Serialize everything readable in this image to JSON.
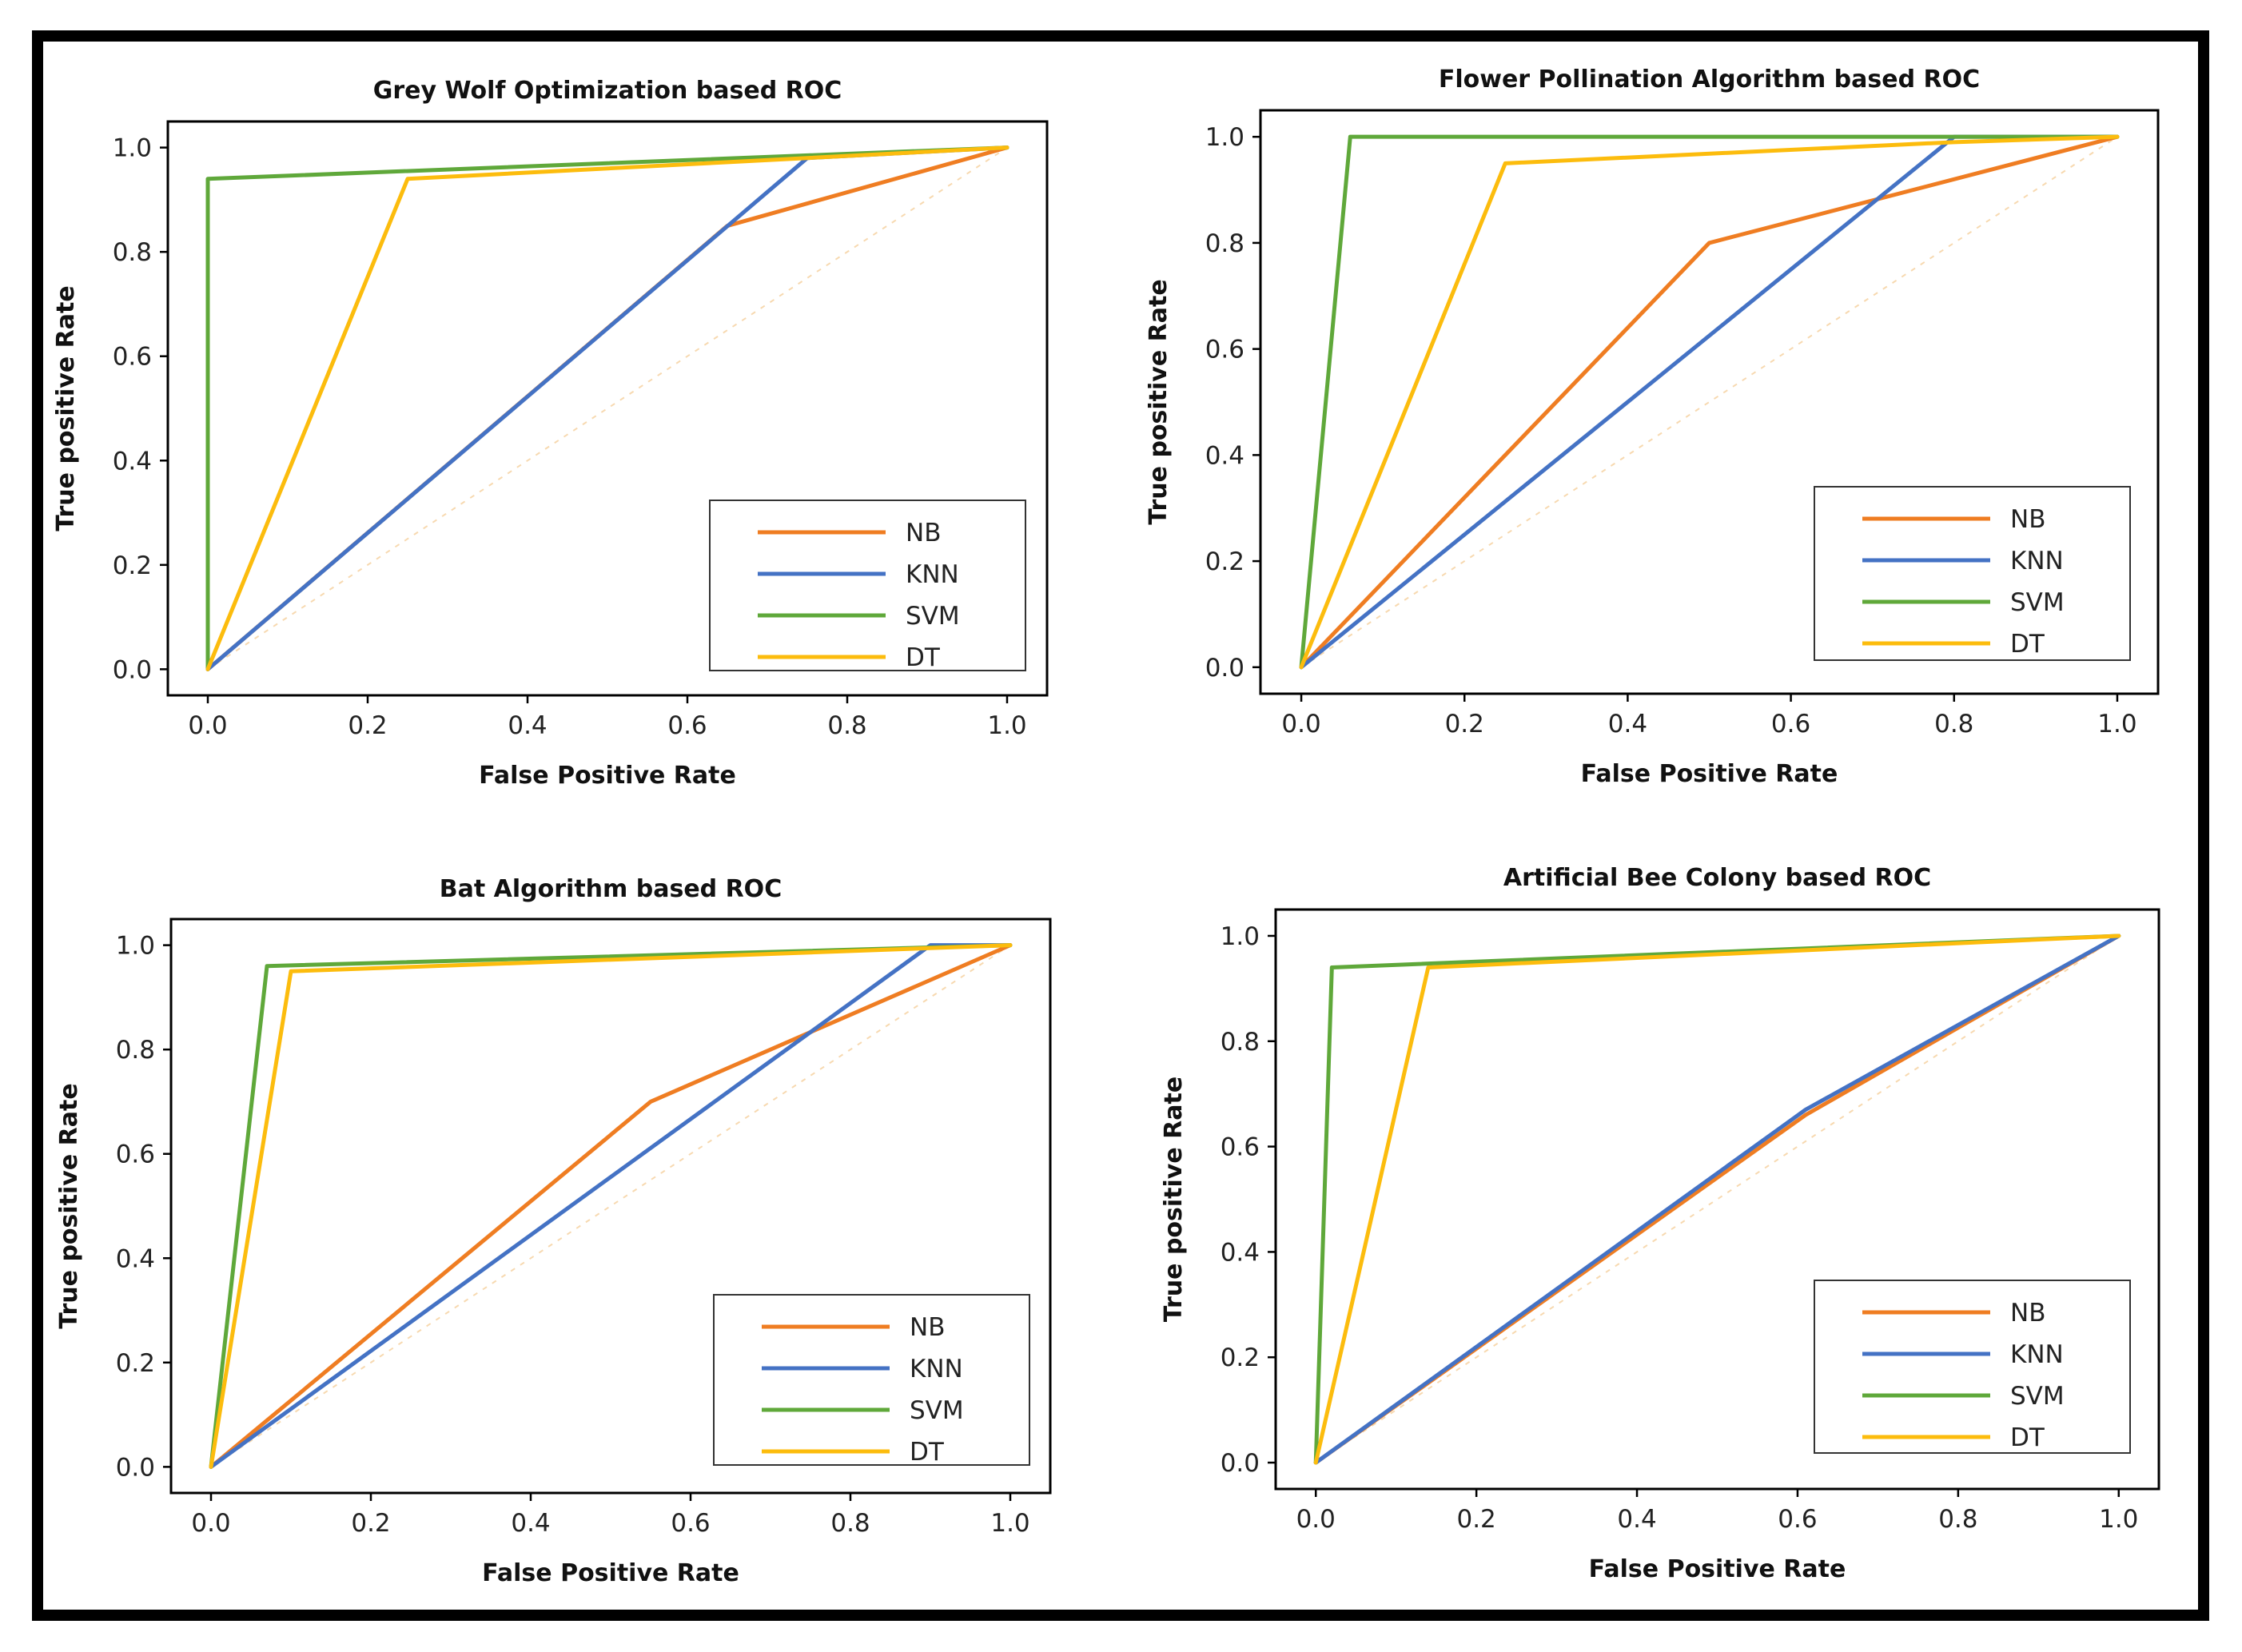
{
  "colors": {
    "NB": "#ef7d22",
    "KNN": "#4472c4",
    "SVM": "#5fa83a",
    "DT": "#fcbc0d",
    "diagonal": "#f7d9b0"
  },
  "chart_data": [
    {
      "type": "line",
      "title": "Grey Wolf Optimization based ROC",
      "xlabel": "False Positive Rate",
      "ylabel": "True positive Rate",
      "xlim": [
        -0.05,
        1.05
      ],
      "ylim": [
        -0.05,
        1.05
      ],
      "xticks": [
        "0.0",
        "0.2",
        "0.4",
        "0.6",
        "0.8",
        "1.0"
      ],
      "yticks": [
        "0.0",
        "0.2",
        "0.4",
        "0.6",
        "0.8",
        "1.0"
      ],
      "legend": [
        "NB",
        "KNN",
        "SVM",
        "DT"
      ],
      "legend_position": "lower-right",
      "series": [
        {
          "name": "NB",
          "x": [
            0,
            0.65,
            1
          ],
          "y": [
            0,
            0.85,
            1
          ]
        },
        {
          "name": "KNN",
          "x": [
            0,
            0.75,
            1
          ],
          "y": [
            0,
            0.98,
            1
          ]
        },
        {
          "name": "SVM",
          "x": [
            0,
            0,
            1
          ],
          "y": [
            0,
            0.94,
            1
          ]
        },
        {
          "name": "DT",
          "x": [
            0,
            0.25,
            1
          ],
          "y": [
            0,
            0.94,
            1
          ]
        }
      ]
    },
    {
      "type": "line",
      "title": "Flower Pollination Algorithm based ROC",
      "xlabel": "False Positive Rate",
      "ylabel": "True positive Rate",
      "xlim": [
        -0.05,
        1.05
      ],
      "ylim": [
        -0.05,
        1.05
      ],
      "xticks": [
        "0.0",
        "0.2",
        "0.4",
        "0.6",
        "0.8",
        "1.0"
      ],
      "yticks": [
        "0.0",
        "0.2",
        "0.4",
        "0.6",
        "0.8",
        "1.0"
      ],
      "legend": [
        "NB",
        "KNN",
        "SVM",
        "DT"
      ],
      "legend_position": "lower-right",
      "series": [
        {
          "name": "NB",
          "x": [
            0,
            0.5,
            1
          ],
          "y": [
            0,
            0.8,
            1
          ]
        },
        {
          "name": "KNN",
          "x": [
            0,
            0.8,
            1
          ],
          "y": [
            0,
            1.0,
            1
          ]
        },
        {
          "name": "SVM",
          "x": [
            0,
            0.06,
            1
          ],
          "y": [
            0,
            1.0,
            1
          ]
        },
        {
          "name": "DT",
          "x": [
            0,
            0.25,
            0.8,
            1
          ],
          "y": [
            0,
            0.95,
            0.99,
            1
          ]
        }
      ]
    },
    {
      "type": "line",
      "title": "Bat Algorithm based ROC",
      "xlabel": "False Positive Rate",
      "ylabel": "True positive Rate",
      "xlim": [
        -0.05,
        1.05
      ],
      "ylim": [
        -0.05,
        1.05
      ],
      "xticks": [
        "0.0",
        "0.2",
        "0.4",
        "0.6",
        "0.8",
        "1.0"
      ],
      "yticks": [
        "0.0",
        "0.2",
        "0.4",
        "0.6",
        "0.8",
        "1.0"
      ],
      "legend": [
        "NB",
        "KNN",
        "SVM",
        "DT"
      ],
      "legend_position": "lower-right",
      "series": [
        {
          "name": "NB",
          "x": [
            0,
            0.55,
            1
          ],
          "y": [
            0,
            0.7,
            1
          ]
        },
        {
          "name": "KNN",
          "x": [
            0,
            0.9,
            1
          ],
          "y": [
            0,
            1.0,
            1
          ]
        },
        {
          "name": "SVM",
          "x": [
            0,
            0.07,
            1
          ],
          "y": [
            0,
            0.96,
            1
          ]
        },
        {
          "name": "DT",
          "x": [
            0,
            0.1,
            1
          ],
          "y": [
            0,
            0.95,
            1
          ]
        }
      ]
    },
    {
      "type": "line",
      "title": "Artificial Bee Colony based ROC",
      "xlabel": "False Positive Rate",
      "ylabel": "True positive Rate",
      "xlim": [
        -0.05,
        1.05
      ],
      "ylim": [
        -0.05,
        1.05
      ],
      "xticks": [
        "0.0",
        "0.2",
        "0.4",
        "0.6",
        "0.8",
        "1.0"
      ],
      "yticks": [
        "0.0",
        "0.2",
        "0.4",
        "0.6",
        "0.8",
        "1.0"
      ],
      "legend": [
        "NB",
        "KNN",
        "SVM",
        "DT"
      ],
      "legend_position": "lower-right",
      "series": [
        {
          "name": "NB",
          "x": [
            0,
            0.61,
            1
          ],
          "y": [
            0,
            0.66,
            1
          ]
        },
        {
          "name": "KNN",
          "x": [
            0,
            0.61,
            1
          ],
          "y": [
            0,
            0.67,
            1
          ]
        },
        {
          "name": "SVM",
          "x": [
            0,
            0.02,
            1
          ],
          "y": [
            0,
            0.94,
            1
          ]
        },
        {
          "name": "DT",
          "x": [
            0,
            0.14,
            1
          ],
          "y": [
            0,
            0.94,
            1
          ]
        }
      ]
    }
  ]
}
